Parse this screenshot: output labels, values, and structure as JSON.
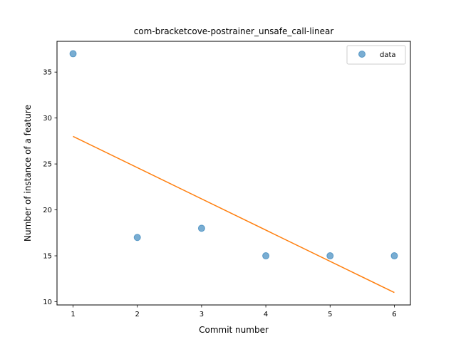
{
  "chart_data": {
    "type": "scatter",
    "title": "com-bracketcove-postrainer_unsafe_call-linear",
    "xlabel": "Commit number",
    "ylabel": "Number of instance of a feature",
    "xlim": [
      0.75,
      6.25
    ],
    "ylim": [
      9.65,
      38.35
    ],
    "xticks": [
      1,
      2,
      3,
      4,
      5,
      6
    ],
    "yticks": [
      10,
      15,
      20,
      25,
      30,
      35
    ],
    "grid": false,
    "legend_position": "top-right",
    "series": [
      {
        "name": "data",
        "type": "scatter",
        "color": "#1f77b4",
        "x": [
          1,
          2,
          3,
          4,
          5,
          6
        ],
        "y": [
          37,
          17,
          18,
          15,
          15,
          15
        ]
      },
      {
        "type": "line",
        "color": "#ff7f0e",
        "x": [
          1,
          6
        ],
        "y": [
          28,
          11
        ]
      }
    ]
  }
}
